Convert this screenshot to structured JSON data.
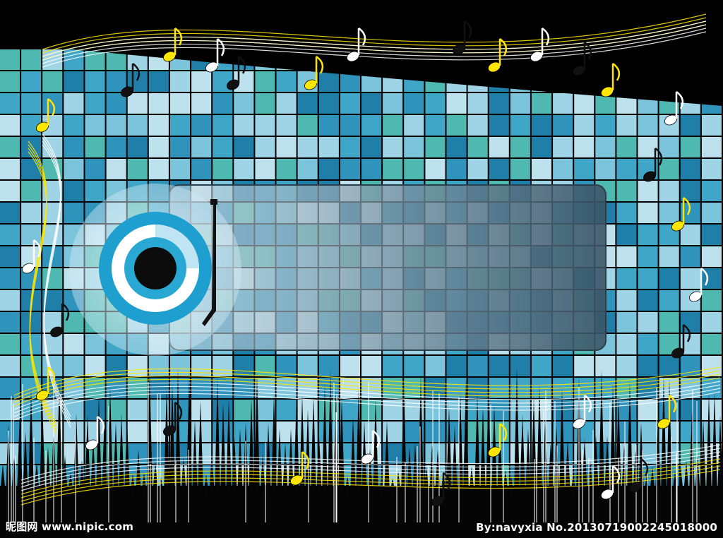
{
  "watermark": {
    "site": "昵图网 www.nipic.com",
    "credit": "By:navyxia  No.20130719002245018000"
  },
  "colors": {
    "background": "#000000",
    "tile_light": "#9fd3e6",
    "tile_mid": "#3fa6c8",
    "tile_dark": "#1f7fa8",
    "tile_teal": "#4fb8b0",
    "panel": "#5f7a8c",
    "accent_yellow": "#ffe600",
    "disc_blue": "#1e9fcf"
  }
}
